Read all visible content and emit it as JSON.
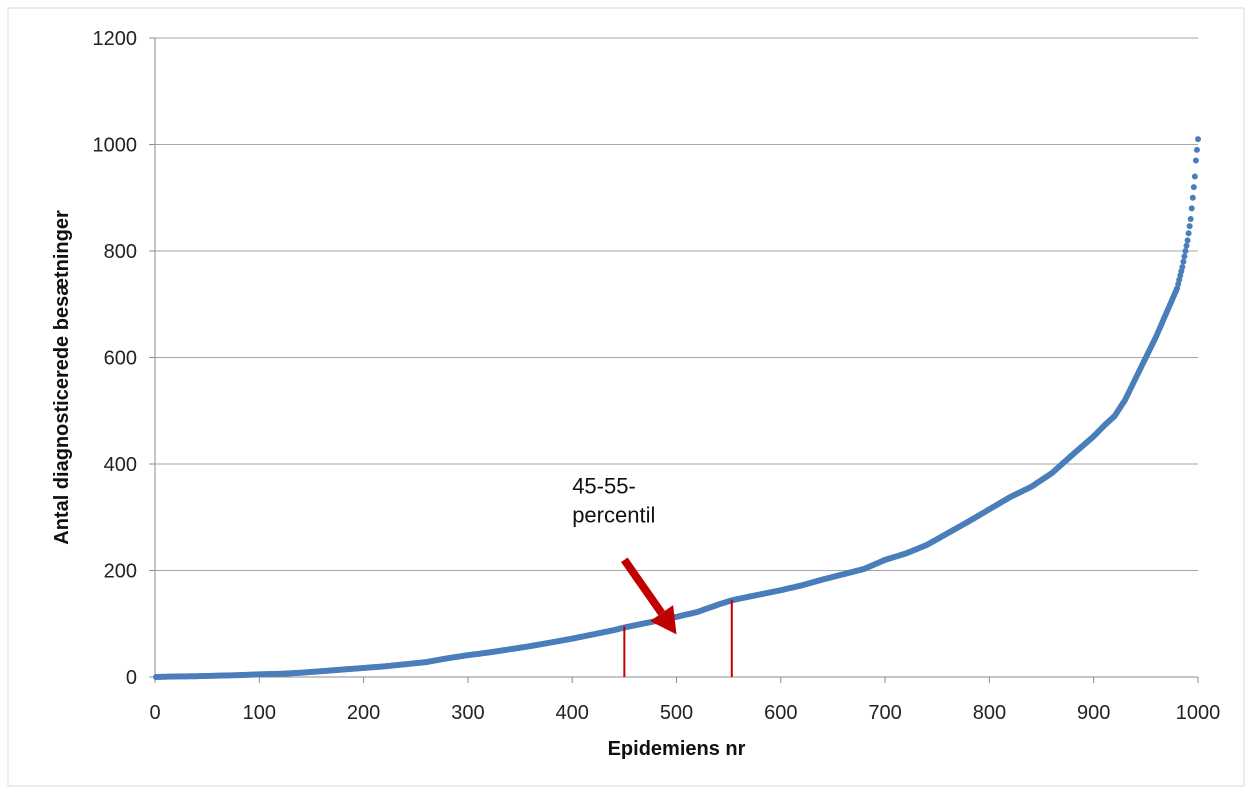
{
  "chart_data": {
    "type": "scatter",
    "title": "",
    "xlabel": "Epidemiens nr",
    "ylabel": "Antal diagnosticerede besætninger",
    "xlim": [
      0,
      1000
    ],
    "ylim": [
      0,
      1200
    ],
    "x_ticks": [
      "0",
      "100",
      "200",
      "300",
      "400",
      "500",
      "600",
      "700",
      "800",
      "900",
      "1000"
    ],
    "y_ticks": [
      "0",
      "200",
      "400",
      "600",
      "800",
      "1000",
      "1200"
    ],
    "grid": "horizontal",
    "legend": "none",
    "series_color": "#4f81bd",
    "marker_color": "#4a7ebb",
    "annotation": {
      "lines": [
        "45-55-",
        "percentil"
      ],
      "color": "#c00000",
      "percentile_markers": [
        {
          "x": 450,
          "y": 95
        },
        {
          "x": 553,
          "y": 145
        }
      ],
      "arrow_from": {
        "x": 450,
        "y": 220
      },
      "arrow_to": {
        "x": 500,
        "y": 80
      }
    },
    "series": [
      {
        "points": [
          [
            0,
            0
          ],
          [
            20,
            1
          ],
          [
            40,
            1.5
          ],
          [
            60,
            2.5
          ],
          [
            80,
            3.5
          ],
          [
            100,
            5
          ],
          [
            120,
            6
          ],
          [
            140,
            8
          ],
          [
            160,
            11
          ],
          [
            180,
            14
          ],
          [
            200,
            17
          ],
          [
            220,
            20
          ],
          [
            240,
            24
          ],
          [
            260,
            28
          ],
          [
            280,
            35
          ],
          [
            300,
            41
          ],
          [
            320,
            46
          ],
          [
            340,
            52
          ],
          [
            360,
            58
          ],
          [
            380,
            65
          ],
          [
            400,
            72
          ],
          [
            420,
            80
          ],
          [
            440,
            88
          ],
          [
            450,
            93
          ],
          [
            460,
            97
          ],
          [
            480,
            105
          ],
          [
            500,
            113
          ],
          [
            520,
            122
          ],
          [
            540,
            136
          ],
          [
            553,
            144
          ],
          [
            560,
            147
          ],
          [
            580,
            155
          ],
          [
            600,
            163
          ],
          [
            620,
            172
          ],
          [
            640,
            183
          ],
          [
            660,
            193
          ],
          [
            680,
            203
          ],
          [
            700,
            220
          ],
          [
            720,
            232
          ],
          [
            740,
            248
          ],
          [
            760,
            270
          ],
          [
            780,
            292
          ],
          [
            800,
            315
          ],
          [
            820,
            338
          ],
          [
            840,
            357
          ],
          [
            860,
            383
          ],
          [
            880,
            418
          ],
          [
            900,
            452
          ],
          [
            910,
            472
          ],
          [
            920,
            490
          ],
          [
            930,
            520
          ],
          [
            940,
            560
          ],
          [
            950,
            600
          ],
          [
            960,
            640
          ],
          [
            970,
            685
          ],
          [
            980,
            730
          ],
          [
            985,
            770
          ],
          [
            990,
            820
          ],
          [
            993,
            860
          ],
          [
            995,
            900
          ],
          [
            997,
            940
          ],
          [
            998,
            970
          ],
          [
            1000,
            1010
          ]
        ]
      }
    ]
  }
}
